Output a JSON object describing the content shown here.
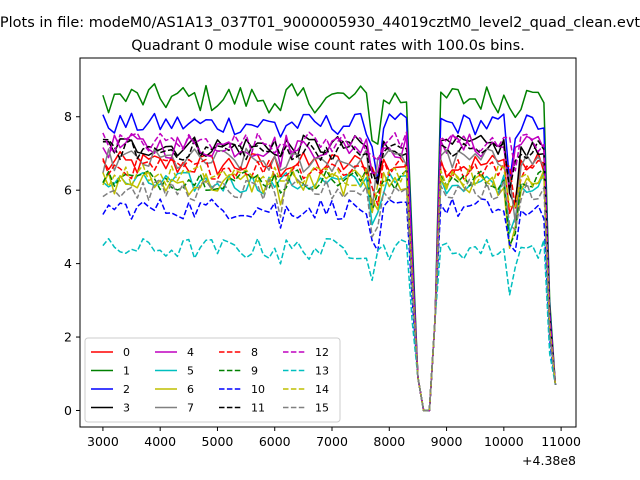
{
  "chart_data": {
    "type": "line",
    "suptitle": "Plots in file: modeM0/AS1A13_037T01_9000005930_44019cztM0_level2_quad_clean.evt",
    "title": "Quadrant 0 module wise count rates with 100.0s bins.",
    "xlabel": "",
    "ylabel": "",
    "x_offset_label": "+4.38e8",
    "xlim": [
      2600,
      11260
    ],
    "ylim": [
      -0.45,
      9.6
    ],
    "xticks": [
      3000,
      4000,
      5000,
      6000,
      7000,
      8000,
      9000,
      10000,
      11000
    ],
    "yticks": [
      0,
      2,
      4,
      6,
      8
    ],
    "grid": false,
    "legend_placement": "lower-left",
    "series": [
      {
        "name": "0",
        "color": "#ff0000",
        "dash": "solid",
        "base": 6.7,
        "amp": 0.35
      },
      {
        "name": "1",
        "color": "#008000",
        "dash": "solid",
        "base": 8.5,
        "amp": 0.4
      },
      {
        "name": "2",
        "color": "#0000ff",
        "dash": "solid",
        "base": 7.8,
        "amp": 0.3
      },
      {
        "name": "3",
        "color": "#000000",
        "dash": "solid",
        "base": 7.2,
        "amp": 0.3
      },
      {
        "name": "4",
        "color": "#bf00bf",
        "dash": "solid",
        "base": 7.2,
        "amp": 0.35
      },
      {
        "name": "5",
        "color": "#00bfbf",
        "dash": "solid",
        "base": 6.2,
        "amp": 0.3
      },
      {
        "name": "6",
        "color": "#bfbf00",
        "dash": "solid",
        "base": 6.2,
        "amp": 0.35
      },
      {
        "name": "7",
        "color": "#808080",
        "dash": "solid",
        "base": 6.8,
        "amp": 0.35
      },
      {
        "name": "8",
        "color": "#ff0000",
        "dash": "dashed",
        "base": 6.6,
        "amp": 0.3
      },
      {
        "name": "9",
        "color": "#008000",
        "dash": "dashed",
        "base": 6.3,
        "amp": 0.3
      },
      {
        "name": "10",
        "color": "#0000ff",
        "dash": "dashed",
        "base": 5.5,
        "amp": 0.3
      },
      {
        "name": "11",
        "color": "#000000",
        "dash": "dashed",
        "base": 7.1,
        "amp": 0.3
      },
      {
        "name": "12",
        "color": "#bf00bf",
        "dash": "dashed",
        "base": 7.3,
        "amp": 0.3
      },
      {
        "name": "13",
        "color": "#00bfbf",
        "dash": "dashed",
        "base": 4.4,
        "amp": 0.3
      },
      {
        "name": "14",
        "color": "#bfbf00",
        "dash": "dashed",
        "base": 6.4,
        "amp": 0.3
      },
      {
        "name": "15",
        "color": "#808080",
        "dash": "dashed",
        "base": 6.0,
        "amp": 0.3
      }
    ]
  }
}
